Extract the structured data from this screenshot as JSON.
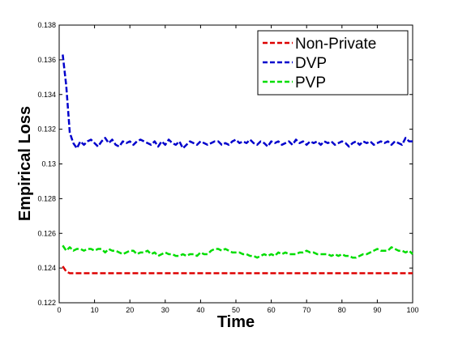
{
  "chart_data": {
    "type": "line",
    "title": "",
    "xlabel": "Time",
    "ylabel": "Empirical Loss",
    "xlim": [
      0,
      100
    ],
    "ylim": [
      0.122,
      0.138
    ],
    "xticks": [
      0,
      10,
      20,
      30,
      40,
      50,
      60,
      70,
      80,
      90,
      100
    ],
    "yticks": [
      0.122,
      0.124,
      0.126,
      0.128,
      0.13,
      0.132,
      0.134,
      0.136,
      0.138
    ],
    "ytick_labels": [
      "0.122",
      "0.124",
      "0.126",
      "0.128",
      "0.13",
      "0.132",
      "0.134",
      "0.136",
      "0.138"
    ],
    "grid": false,
    "legend_position": "top-right",
    "x": [
      1,
      2,
      3,
      4,
      5,
      6,
      7,
      8,
      9,
      10,
      11,
      12,
      13,
      14,
      15,
      16,
      17,
      18,
      19,
      20,
      21,
      22,
      23,
      24,
      25,
      26,
      27,
      28,
      29,
      30,
      31,
      32,
      33,
      34,
      35,
      36,
      37,
      38,
      39,
      40,
      41,
      42,
      43,
      44,
      45,
      46,
      47,
      48,
      49,
      50,
      51,
      52,
      53,
      54,
      55,
      56,
      57,
      58,
      59,
      60,
      61,
      62,
      63,
      64,
      65,
      66,
      67,
      68,
      69,
      70,
      71,
      72,
      73,
      74,
      75,
      76,
      77,
      78,
      79,
      80,
      81,
      82,
      83,
      84,
      85,
      86,
      87,
      88,
      89,
      90,
      91,
      92,
      93,
      94,
      95,
      96,
      97,
      98,
      99,
      100
    ],
    "series": [
      {
        "name": "Non-Private",
        "color": "#dd0000",
        "style": "dashed",
        "values": [
          0.1241,
          0.1238,
          0.1237,
          0.1237,
          0.1237,
          0.1237,
          0.1237,
          0.1237,
          0.1237,
          0.1237,
          0.1237,
          0.1237,
          0.1237,
          0.1237,
          0.1237,
          0.1237,
          0.1237,
          0.1237,
          0.1237,
          0.1237,
          0.1237,
          0.1237,
          0.1237,
          0.1237,
          0.1237,
          0.1237,
          0.1237,
          0.1237,
          0.1237,
          0.1237,
          0.1237,
          0.1237,
          0.1237,
          0.1237,
          0.1237,
          0.1237,
          0.1237,
          0.1237,
          0.1237,
          0.1237,
          0.1237,
          0.1237,
          0.1237,
          0.1237,
          0.1237,
          0.1237,
          0.1237,
          0.1237,
          0.1237,
          0.1237,
          0.1237,
          0.1237,
          0.1237,
          0.1237,
          0.1237,
          0.1237,
          0.1237,
          0.1237,
          0.1237,
          0.1237,
          0.1237,
          0.1237,
          0.1237,
          0.1237,
          0.1237,
          0.1237,
          0.1237,
          0.1237,
          0.1237,
          0.1237,
          0.1237,
          0.1237,
          0.1237,
          0.1237,
          0.1237,
          0.1237,
          0.1237,
          0.1237,
          0.1237,
          0.1237,
          0.1237,
          0.1237,
          0.1237,
          0.1237,
          0.1237,
          0.1237,
          0.1237,
          0.1237,
          0.1237,
          0.1237,
          0.1237,
          0.1237,
          0.1237,
          0.1237,
          0.1237,
          0.1237,
          0.1237,
          0.1237,
          0.1237,
          0.1237
        ]
      },
      {
        "name": "DVP",
        "color": "#0000cc",
        "style": "dashed",
        "values": [
          0.1363,
          0.1345,
          0.1318,
          0.1312,
          0.1309,
          0.1313,
          0.1311,
          0.1313,
          0.1314,
          0.1312,
          0.131,
          0.1313,
          0.1315,
          0.1312,
          0.1314,
          0.1311,
          0.131,
          0.1313,
          0.1312,
          0.1313,
          0.1311,
          0.1313,
          0.1314,
          0.1313,
          0.1312,
          0.1311,
          0.1313,
          0.131,
          0.1313,
          0.1311,
          0.1314,
          0.1312,
          0.1311,
          0.1313,
          0.1309,
          0.1311,
          0.1313,
          0.1312,
          0.1311,
          0.1313,
          0.1312,
          0.1311,
          0.1312,
          0.1313,
          0.1313,
          0.1311,
          0.1312,
          0.1311,
          0.1313,
          0.1314,
          0.1312,
          0.1313,
          0.1312,
          0.1314,
          0.1312,
          0.1311,
          0.1313,
          0.1312,
          0.131,
          0.1313,
          0.1312,
          0.1313,
          0.1311,
          0.1312,
          0.1313,
          0.1311,
          0.1314,
          0.1312,
          0.1313,
          0.1311,
          0.1313,
          0.1312,
          0.1313,
          0.1311,
          0.1313,
          0.1312,
          0.1313,
          0.1311,
          0.1312,
          0.1313,
          0.1312,
          0.131,
          0.1312,
          0.1313,
          0.1311,
          0.1313,
          0.1312,
          0.1313,
          0.1311,
          0.1312,
          0.1313,
          0.1312,
          0.1313,
          0.1311,
          0.1313,
          0.1312,
          0.1311,
          0.1315,
          0.1313,
          0.1313
        ]
      },
      {
        "name": "PVP",
        "color": "#00dd00",
        "style": "dashed",
        "values": [
          0.1253,
          0.125,
          0.1252,
          0.125,
          0.1251,
          0.1251,
          0.125,
          0.1251,
          0.1251,
          0.125,
          0.1251,
          0.1251,
          0.1249,
          0.1251,
          0.125,
          0.125,
          0.1249,
          0.1248,
          0.1249,
          0.125,
          0.125,
          0.1248,
          0.1249,
          0.1249,
          0.125,
          0.1248,
          0.1249,
          0.1247,
          0.1248,
          0.1249,
          0.1248,
          0.1248,
          0.1247,
          0.1247,
          0.1248,
          0.1247,
          0.1248,
          0.1248,
          0.1247,
          0.1249,
          0.1248,
          0.1248,
          0.125,
          0.1251,
          0.1251,
          0.125,
          0.1251,
          0.125,
          0.1249,
          0.1249,
          0.1249,
          0.1248,
          0.1248,
          0.1247,
          0.1247,
          0.1246,
          0.1247,
          0.1248,
          0.1247,
          0.1248,
          0.1247,
          0.1249,
          0.1248,
          0.1249,
          0.1248,
          0.1248,
          0.1248,
          0.1249,
          0.1249,
          0.125,
          0.1249,
          0.1249,
          0.1248,
          0.1248,
          0.1248,
          0.1248,
          0.1247,
          0.1248,
          0.1247,
          0.1248,
          0.1247,
          0.1247,
          0.1246,
          0.1246,
          0.1247,
          0.1248,
          0.1248,
          0.1249,
          0.125,
          0.1251,
          0.125,
          0.125,
          0.125,
          0.1252,
          0.1251,
          0.125,
          0.125,
          0.1249,
          0.125,
          0.1248
        ]
      }
    ]
  }
}
